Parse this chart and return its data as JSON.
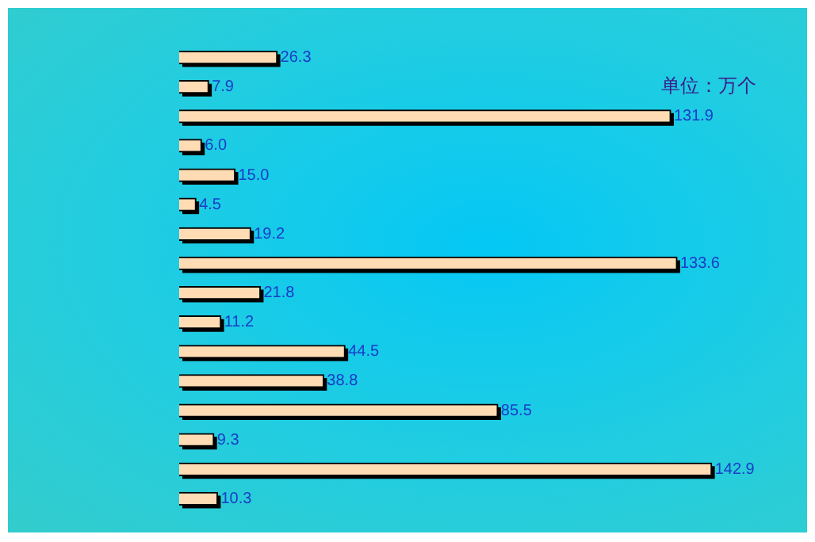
{
  "chart_data": {
    "type": "bar",
    "orientation": "horizontal",
    "annotations": [
      "单位：万个"
    ],
    "categories": [
      null,
      null,
      null,
      null,
      null,
      null,
      null,
      null,
      null,
      null,
      null,
      null,
      null,
      null,
      null,
      null
    ],
    "values": [
      26.3,
      7.9,
      131.9,
      6.0,
      15.0,
      4.5,
      19.2,
      133.6,
      21.8,
      11.2,
      44.5,
      38.8,
      85.5,
      9.3,
      142.9,
      10.3
    ],
    "value_labels": [
      "26.3",
      "7.9",
      "131.9",
      "6.0",
      "15.0",
      "4.5",
      "19.2",
      "133.6",
      "21.8",
      "11.2",
      "44.5",
      "38.8",
      "85.5",
      "9.3",
      "142.9",
      "10.3"
    ],
    "color": "#ffdcb4",
    "tick_labels": false,
    "grid": false,
    "legend": false
  }
}
